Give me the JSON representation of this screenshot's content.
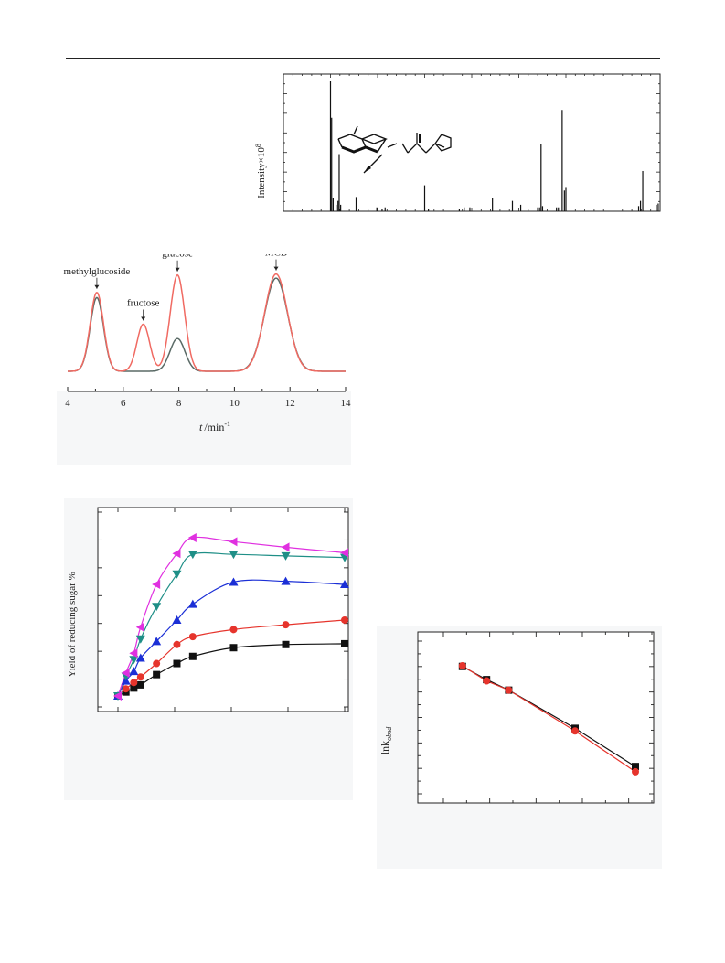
{
  "colors": {
    "black_series": "#111111",
    "red_series": "#e6342c",
    "blue_series": "#1b2fd6",
    "teal_series": "#1f8f87",
    "magenta_series": "#e030e0",
    "hplc_gray": "#5a6a66",
    "hplc_red": "#f06a62"
  },
  "chart_data": [
    {
      "type": "bar",
      "description_kind": "mass-spectrum stick plot",
      "ylabel": "Intensity×10",
      "ylabel_sup": "8",
      "xlim": [
        0,
        100
      ],
      "ylim": [
        0,
        100
      ],
      "peaks_x": [
        12.5,
        12.8,
        13.2,
        14.0,
        14.5,
        14.8,
        15.2,
        19.3,
        24.8,
        26.2,
        27.0,
        37.5,
        38.5,
        46.7,
        48.0,
        49.5,
        55.5,
        60.8,
        63.0,
        67.5,
        68.0,
        68.4,
        68.8,
        72.5,
        73.0,
        74.0,
        74.6,
        75.0,
        94.3,
        94.8,
        95.4,
        99.0,
        99.5
      ],
      "peaks_y": [
        100,
        72,
        10,
        5,
        8,
        44,
        5,
        11,
        3,
        2,
        3,
        20,
        2,
        2,
        3,
        3,
        10,
        8,
        5,
        3,
        3,
        52,
        4,
        3,
        3,
        78,
        16,
        18,
        4,
        8,
        31,
        5,
        6
      ],
      "structure_label": "structure"
    },
    {
      "type": "line",
      "xlabel": "t",
      "xlabel_unit": "/min",
      "xlabel_sup": "-1",
      "xlim": [
        4,
        14
      ],
      "x_ticks": [
        "4",
        "6",
        "8",
        "10",
        "12",
        "14"
      ],
      "annotations": [
        "methylglucoside",
        "fructose",
        "glucose",
        "MCB"
      ],
      "series": [
        {
          "color_key": "hplc_gray",
          "peaks": [
            [
              5.05,
              0.72,
              0.24
            ],
            [
              7.95,
              0.32,
              0.27
            ],
            [
              11.5,
              0.91,
              0.42
            ]
          ]
        },
        {
          "color_key": "hplc_red",
          "peaks": [
            [
              5.05,
              0.77,
              0.24
            ],
            [
              6.72,
              0.46,
              0.23
            ],
            [
              7.95,
              0.94,
              0.26
            ],
            [
              11.5,
              0.95,
              0.41
            ]
          ]
        }
      ]
    },
    {
      "type": "line",
      "ylabel": "Yield of reducing sugar %",
      "xlim": [
        0,
        10
      ],
      "ylim": [
        0,
        10
      ],
      "series": [
        {
          "color_key": "black_series",
          "marker": "square",
          "x": [
            0,
            0.35,
            0.7,
            1.0,
            1.7,
            2.6,
            3.3,
            5.1,
            7.4,
            10.0
          ],
          "y": [
            0,
            0.25,
            0.5,
            0.7,
            1.35,
            2.05,
            2.5,
            3.05,
            3.25,
            3.3
          ]
        },
        {
          "color_key": "red_series",
          "marker": "circle",
          "x": [
            0,
            0.35,
            0.7,
            1.0,
            1.7,
            2.6,
            3.3,
            5.1,
            7.4,
            10.0
          ],
          "y": [
            0,
            0.45,
            0.85,
            1.2,
            2.05,
            3.25,
            3.75,
            4.2,
            4.5,
            4.8
          ]
        },
        {
          "color_key": "blue_series",
          "marker": "triangle-up",
          "x": [
            0,
            0.35,
            0.7,
            1.0,
            1.7,
            2.6,
            3.3,
            5.1,
            7.4,
            10.0
          ],
          "y": [
            0,
            0.95,
            1.55,
            2.4,
            3.45,
            4.8,
            5.8,
            7.2,
            7.25,
            7.05
          ]
        },
        {
          "color_key": "teal_series",
          "marker": "triangle-down",
          "x": [
            0,
            0.35,
            0.7,
            1.0,
            1.7,
            2.6,
            3.3,
            5.1,
            7.4,
            10.0
          ],
          "y": [
            0,
            1.25,
            2.3,
            3.6,
            5.65,
            7.7,
            8.95,
            8.95,
            8.85,
            8.75
          ]
        },
        {
          "color_key": "magenta_series",
          "marker": "triangle-left",
          "x": [
            0,
            0.35,
            0.7,
            1.0,
            1.7,
            2.6,
            3.3,
            5.1,
            7.4,
            10.0
          ],
          "y": [
            0,
            1.45,
            2.7,
            4.35,
            7.05,
            9.0,
            10.0,
            9.75,
            9.4,
            9.05
          ]
        }
      ]
    },
    {
      "type": "line",
      "ylabel": "lnk",
      "ylabel_sub": "obsd",
      "xlim": [
        0,
        10
      ],
      "ylim": [
        0,
        10
      ],
      "series": [
        {
          "color_key": "black_series",
          "marker": "square",
          "x": [
            1.4,
            2.6,
            3.7,
            7.0,
            10.0
          ],
          "y": [
            8.7,
            7.7,
            6.9,
            4.0,
            1.1
          ]
        },
        {
          "color_key": "red_series",
          "marker": "circle",
          "x": [
            1.4,
            2.6,
            3.7,
            7.0,
            10.0
          ],
          "y": [
            8.75,
            7.6,
            6.9,
            3.8,
            0.7
          ]
        }
      ]
    }
  ]
}
